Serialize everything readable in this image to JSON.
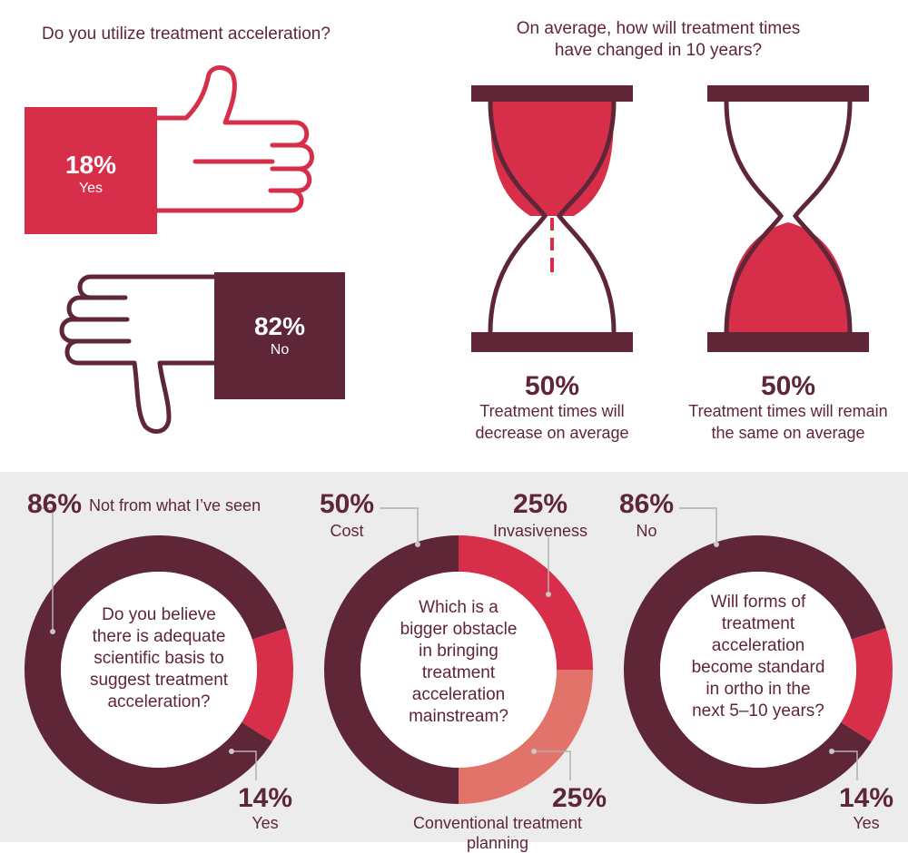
{
  "colors": {
    "maroon": "#5f2638",
    "red": "#d72f4a",
    "salmon": "#e2736b",
    "panel": "#ececec"
  },
  "thumbs": {
    "question": "Do you utilize treatment acceleration?",
    "yes": {
      "pct": "18%",
      "label": "Yes"
    },
    "no": {
      "pct": "82%",
      "label": "No"
    }
  },
  "hourglass": {
    "question_line1": "On average, how will treatment times",
    "question_line2": "have changed in 10 years?",
    "left": {
      "pct": "50%",
      "line1": "Treatment times will",
      "line2": "decrease on average"
    },
    "right": {
      "pct": "50%",
      "line1": "Treatment times will remain",
      "line2": "the same on average"
    }
  },
  "donuts": {
    "d1": {
      "q": [
        "Do you believe",
        "there is adequate",
        "scientific basis to",
        "suggest treatment",
        "acceleration?"
      ],
      "a_pct": "86%",
      "a_label": "Not from what I’ve seen",
      "b_pct": "14%",
      "b_label": "Yes"
    },
    "d2": {
      "q": [
        "Which is a",
        "bigger obstacle",
        "in bringing",
        "treatment",
        "acceleration",
        "mainstream?"
      ],
      "a_pct": "50%",
      "a_label": "Cost",
      "b_pct": "25%",
      "b_label": "Invasiveness",
      "c_pct": "25%",
      "c_label": "Conventional treatment planning"
    },
    "d3": {
      "q": [
        "Will forms of",
        "treatment",
        "acceleration",
        "become standard",
        "in ortho in the",
        "next 5–10 years?"
      ],
      "a_pct": "86%",
      "a_label": "No",
      "b_pct": "14%",
      "b_label": "Yes"
    }
  },
  "chart_data": [
    {
      "type": "pie",
      "title": "Do you utilize treatment acceleration?",
      "categories": [
        "Yes",
        "No"
      ],
      "values": [
        18,
        82
      ]
    },
    {
      "type": "bar",
      "title": "On average, how will treatment times have changed in 10 years?",
      "categories": [
        "Treatment times will decrease on average",
        "Treatment times will remain the same on average"
      ],
      "values": [
        50,
        50
      ]
    },
    {
      "type": "pie",
      "title": "Do you believe there is adequate scientific basis to suggest treatment acceleration?",
      "categories": [
        "Not from what I’ve seen",
        "Yes"
      ],
      "values": [
        86,
        14
      ]
    },
    {
      "type": "pie",
      "title": "Which is a bigger obstacle in bringing treatment acceleration mainstream?",
      "categories": [
        "Cost",
        "Invasiveness",
        "Conventional treatment planning"
      ],
      "values": [
        50,
        25,
        25
      ]
    },
    {
      "type": "pie",
      "title": "Will forms of treatment acceleration become standard in ortho in the next 5–10 years?",
      "categories": [
        "No",
        "Yes"
      ],
      "values": [
        86,
        14
      ]
    }
  ]
}
